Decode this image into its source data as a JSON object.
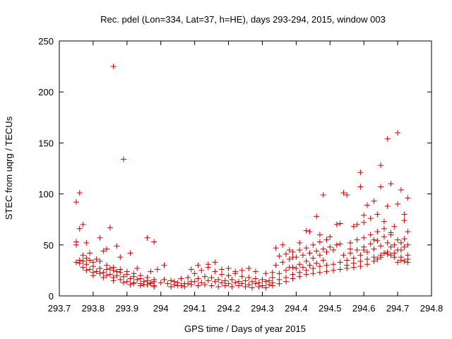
{
  "chart_data": {
    "type": "scatter",
    "title": "Rec. pdel (Lon=334, Lat=37, h=HE), days 293-294, 2015, window 003",
    "xlabel": "GPS time / Days of year 2015",
    "ylabel": "STEC from uqrg / TECUs",
    "xlim": [
      293.7,
      294.8
    ],
    "ylim": [
      0,
      250
    ],
    "xticks": [
      "293.7",
      "293.8",
      "293.9",
      "294",
      "294.1",
      "294.2",
      "294.3",
      "294.4",
      "294.5",
      "294.6",
      "294.7",
      "294.8"
    ],
    "yticks": [
      "0",
      "50",
      "100",
      "150",
      "200",
      "250"
    ],
    "grid": false,
    "marker": "plus",
    "color": "#cc0000",
    "points": [
      [
        293.75,
        92
      ],
      [
        293.75,
        53
      ],
      [
        293.75,
        50
      ],
      [
        293.76,
        101
      ],
      [
        293.76,
        66
      ],
      [
        293.77,
        70
      ],
      [
        293.78,
        52
      ],
      [
        293.77,
        40
      ],
      [
        293.79,
        42
      ],
      [
        293.82,
        57
      ],
      [
        293.83,
        44
      ],
      [
        293.84,
        46
      ],
      [
        293.85,
        67
      ],
      [
        293.86,
        225
      ],
      [
        293.87,
        49
      ],
      [
        293.89,
        134
      ],
      [
        293.88,
        38
      ],
      [
        293.91,
        42
      ],
      [
        293.96,
        57
      ],
      [
        293.98,
        53
      ],
      [
        294.01,
        30
      ],
      [
        294.41,
        52
      ],
      [
        294.43,
        64
      ],
      [
        294.44,
        63
      ],
      [
        294.46,
        78
      ],
      [
        294.47,
        60
      ],
      [
        294.48,
        99
      ],
      [
        294.5,
        58
      ],
      [
        294.52,
        70
      ],
      [
        294.53,
        71
      ],
      [
        294.54,
        101
      ],
      [
        294.55,
        99
      ],
      [
        294.57,
        68
      ],
      [
        294.58,
        70
      ],
      [
        294.59,
        121
      ],
      [
        294.59,
        107
      ],
      [
        294.6,
        79
      ],
      [
        294.6,
        72
      ],
      [
        294.61,
        89
      ],
      [
        294.62,
        76
      ],
      [
        294.63,
        93
      ],
      [
        294.64,
        80
      ],
      [
        294.65,
        128
      ],
      [
        294.65,
        107
      ],
      [
        294.66,
        73
      ],
      [
        294.67,
        154
      ],
      [
        294.67,
        88
      ],
      [
        294.68,
        110
      ],
      [
        294.68,
        62
      ],
      [
        294.69,
        68
      ],
      [
        294.7,
        160
      ],
      [
        294.71,
        104
      ],
      [
        294.7,
        90
      ],
      [
        294.72,
        80
      ],
      [
        294.72,
        74
      ],
      [
        294.73,
        96
      ],
      [
        294.73,
        63
      ],
      [
        294.72,
        56
      ],
      [
        294.71,
        52
      ],
      [
        294.53,
        51
      ],
      [
        294.56,
        46
      ],
      [
        294.6,
        45
      ],
      [
        294.63,
        55
      ],
      [
        294.68,
        48
      ],
      [
        294.73,
        50
      ],
      [
        294.7,
        45
      ],
      [
        294.34,
        47
      ],
      [
        294.36,
        50
      ],
      [
        294.38,
        45
      ],
      [
        294.39,
        38
      ],
      [
        293.75,
        33
      ],
      [
        293.76,
        32
      ],
      [
        293.77,
        34
      ],
      [
        293.78,
        37
      ],
      [
        293.79,
        35
      ],
      [
        293.8,
        33
      ],
      [
        293.81,
        36
      ],
      [
        293.82,
        34
      ],
      [
        293.84,
        30
      ],
      [
        293.86,
        28
      ],
      [
        293.88,
        26
      ],
      [
        293.9,
        24
      ],
      [
        293.92,
        22
      ],
      [
        293.94,
        20
      ],
      [
        293.96,
        18
      ],
      [
        293.98,
        16
      ],
      [
        293.76,
        35
      ],
      [
        293.78,
        31
      ],
      [
        293.8,
        29
      ],
      [
        293.82,
        27
      ],
      [
        293.84,
        26
      ],
      [
        293.86,
        25
      ],
      [
        293.88,
        23
      ],
      [
        293.9,
        21
      ],
      [
        293.92,
        19
      ],
      [
        293.94,
        17
      ],
      [
        293.96,
        15
      ],
      [
        293.98,
        14
      ],
      [
        293.77,
        28
      ],
      [
        293.79,
        26
      ],
      [
        293.81,
        24
      ],
      [
        293.83,
        23
      ],
      [
        293.85,
        21
      ],
      [
        293.87,
        20
      ],
      [
        293.89,
        19
      ],
      [
        293.91,
        17
      ],
      [
        293.93,
        16
      ],
      [
        293.95,
        14
      ],
      [
        293.97,
        13
      ],
      [
        293.78,
        25
      ],
      [
        293.8,
        23
      ],
      [
        293.82,
        22
      ],
      [
        293.84,
        20
      ],
      [
        293.86,
        18
      ],
      [
        293.88,
        16
      ],
      [
        293.9,
        14
      ],
      [
        293.92,
        13
      ],
      [
        293.94,
        12
      ],
      [
        293.96,
        11
      ],
      [
        293.98,
        10
      ],
      [
        293.8,
        20
      ],
      [
        293.83,
        18
      ],
      [
        293.86,
        15
      ],
      [
        293.89,
        13
      ],
      [
        293.92,
        12
      ],
      [
        293.95,
        11
      ],
      [
        293.98,
        9
      ],
      [
        293.85,
        27
      ],
      [
        293.87,
        24
      ],
      [
        293.93,
        27
      ],
      [
        293.97,
        24
      ],
      [
        293.99,
        26
      ],
      [
        293.91,
        11
      ],
      [
        293.94,
        10
      ],
      [
        293.97,
        12
      ],
      [
        294.01,
        16
      ],
      [
        294.03,
        15
      ],
      [
        294.05,
        13
      ],
      [
        294.07,
        12
      ],
      [
        294.09,
        11
      ],
      [
        294.11,
        10
      ],
      [
        294.13,
        11
      ],
      [
        294.15,
        10
      ],
      [
        294.17,
        9
      ],
      [
        294.19,
        10
      ],
      [
        294.21,
        9
      ],
      [
        294.23,
        10
      ],
      [
        294.25,
        9
      ],
      [
        294.27,
        8
      ],
      [
        294.29,
        9
      ],
      [
        294.31,
        8
      ],
      [
        294.02,
        12
      ],
      [
        294.04,
        11
      ],
      [
        294.06,
        10
      ],
      [
        294.08,
        12
      ],
      [
        294.1,
        14
      ],
      [
        294.12,
        13
      ],
      [
        294.14,
        15
      ],
      [
        294.16,
        14
      ],
      [
        294.18,
        13
      ],
      [
        294.2,
        12
      ],
      [
        294.22,
        13
      ],
      [
        294.24,
        12
      ],
      [
        294.26,
        11
      ],
      [
        294.28,
        12
      ],
      [
        294.3,
        10
      ],
      [
        294.32,
        11
      ],
      [
        294.03,
        9
      ],
      [
        294.05,
        10
      ],
      [
        294.07,
        9
      ],
      [
        294.09,
        14
      ],
      [
        294.11,
        17
      ],
      [
        294.13,
        19
      ],
      [
        294.15,
        18
      ],
      [
        294.17,
        16
      ],
      [
        294.19,
        15
      ],
      [
        294.21,
        16
      ],
      [
        294.23,
        14
      ],
      [
        294.25,
        15
      ],
      [
        294.27,
        14
      ],
      [
        294.29,
        13
      ],
      [
        294.31,
        14
      ],
      [
        294.1,
        22
      ],
      [
        294.12,
        25
      ],
      [
        294.14,
        28
      ],
      [
        294.16,
        24
      ],
      [
        294.18,
        21
      ],
      [
        294.2,
        20
      ],
      [
        294.22,
        22
      ],
      [
        294.24,
        19
      ],
      [
        294.26,
        18
      ],
      [
        294.28,
        17
      ],
      [
        294.3,
        16
      ],
      [
        294.32,
        15
      ],
      [
        294.09,
        26
      ],
      [
        294.11,
        30
      ],
      [
        294.14,
        31
      ],
      [
        294.16,
        33
      ],
      [
        294.18,
        26
      ],
      [
        294.2,
        27
      ],
      [
        294.22,
        24
      ],
      [
        294.24,
        25
      ],
      [
        294.26,
        27
      ],
      [
        294.28,
        24
      ],
      [
        294.31,
        22
      ],
      [
        294.33,
        23
      ],
      [
        294.06,
        17
      ],
      [
        294.08,
        18
      ],
      [
        294.04,
        14
      ],
      [
        294.0,
        13
      ],
      [
        294.33,
        18
      ],
      [
        294.35,
        22
      ],
      [
        294.37,
        25
      ],
      [
        294.39,
        28
      ],
      [
        294.41,
        31
      ],
      [
        294.43,
        34
      ],
      [
        294.45,
        37
      ],
      [
        294.47,
        40
      ],
      [
        294.49,
        43
      ],
      [
        294.51,
        45
      ],
      [
        294.33,
        13
      ],
      [
        294.35,
        16
      ],
      [
        294.37,
        18
      ],
      [
        294.39,
        21
      ],
      [
        294.41,
        23
      ],
      [
        294.43,
        25
      ],
      [
        294.45,
        27
      ],
      [
        294.47,
        29
      ],
      [
        294.49,
        30
      ],
      [
        294.51,
        31
      ],
      [
        294.33,
        10
      ],
      [
        294.35,
        12
      ],
      [
        294.37,
        14
      ],
      [
        294.39,
        17
      ],
      [
        294.41,
        19
      ],
      [
        294.43,
        21
      ],
      [
        294.45,
        22
      ],
      [
        294.47,
        23
      ],
      [
        294.49,
        24
      ],
      [
        294.51,
        25
      ],
      [
        294.34,
        30
      ],
      [
        294.36,
        33
      ],
      [
        294.38,
        36
      ],
      [
        294.4,
        38
      ],
      [
        294.42,
        40
      ],
      [
        294.44,
        42
      ],
      [
        294.46,
        44
      ],
      [
        294.48,
        46
      ],
      [
        294.5,
        48
      ],
      [
        294.52,
        50
      ],
      [
        294.35,
        39
      ],
      [
        294.37,
        41
      ],
      [
        294.39,
        43
      ],
      [
        294.41,
        45
      ],
      [
        294.43,
        47
      ],
      [
        294.45,
        50
      ],
      [
        294.47,
        53
      ],
      [
        294.49,
        55
      ],
      [
        294.38,
        28
      ],
      [
        294.4,
        27
      ],
      [
        294.42,
        28
      ],
      [
        294.44,
        30
      ],
      [
        294.46,
        32
      ],
      [
        294.48,
        35
      ],
      [
        294.53,
        26
      ],
      [
        294.55,
        27
      ],
      [
        294.57,
        28
      ],
      [
        294.59,
        29
      ],
      [
        294.61,
        31
      ],
      [
        294.63,
        34
      ],
      [
        294.65,
        38
      ],
      [
        294.67,
        41
      ],
      [
        294.69,
        38
      ],
      [
        294.71,
        35
      ],
      [
        294.73,
        33
      ],
      [
        294.53,
        33
      ],
      [
        294.55,
        35
      ],
      [
        294.57,
        37
      ],
      [
        294.59,
        40
      ],
      [
        294.61,
        43
      ],
      [
        294.63,
        46
      ],
      [
        294.65,
        49
      ],
      [
        294.67,
        52
      ],
      [
        294.69,
        50
      ],
      [
        294.71,
        45
      ],
      [
        294.73,
        40
      ],
      [
        294.54,
        40
      ],
      [
        294.56,
        42
      ],
      [
        294.58,
        45
      ],
      [
        294.6,
        48
      ],
      [
        294.62,
        51
      ],
      [
        294.64,
        54
      ],
      [
        294.66,
        58
      ],
      [
        294.68,
        60
      ],
      [
        294.7,
        55
      ],
      [
        294.72,
        48
      ],
      [
        294.55,
        30
      ],
      [
        294.57,
        32
      ],
      [
        294.59,
        34
      ],
      [
        294.61,
        36
      ],
      [
        294.63,
        38
      ],
      [
        294.65,
        40
      ],
      [
        294.67,
        43
      ],
      [
        294.69,
        42
      ],
      [
        294.71,
        38
      ],
      [
        294.73,
        36
      ],
      [
        294.56,
        52
      ],
      [
        294.58,
        55
      ],
      [
        294.6,
        57
      ],
      [
        294.62,
        60
      ],
      [
        294.64,
        63
      ],
      [
        294.66,
        66
      ],
      [
        294.72,
        34
      ],
      [
        294.7,
        33
      ],
      [
        294.68,
        40
      ],
      [
        294.66,
        42
      ],
      [
        294.64,
        36
      ]
    ]
  }
}
